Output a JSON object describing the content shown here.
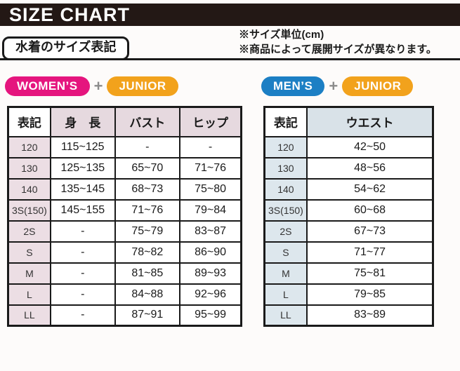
{
  "title_bar": {
    "title": "SIZE CHART"
  },
  "section": {
    "label": "水着のサイズ表記",
    "notes": [
      "※サイズ単位(cm)",
      "※商品によって展開サイズが異なります。"
    ]
  },
  "colors": {
    "title_bar_bg": "#231815",
    "womens_badge": "#e5157e",
    "mens_badge": "#1c7fc4",
    "junior_badge": "#f2a21c",
    "plus_sign": "#8c8c8c",
    "table_border": "#1a1a1a",
    "womens_header_bg": "#e6d9df",
    "womens_firstcol_bg": "#ecdee4",
    "mens_header_bg": "#d9e2e8",
    "mens_firstcol_bg": "#dde7ed"
  },
  "left_group": {
    "badges": [
      {
        "label": "WOMEN’S"
      },
      {
        "label": "JUNIOR"
      }
    ],
    "plus": "+",
    "table": {
      "headers": [
        "表記",
        "身　長",
        "バスト",
        "ヒップ"
      ],
      "rows": [
        [
          "120",
          "115~125",
          "-",
          "-"
        ],
        [
          "130",
          "125~135",
          "65~70",
          "71~76"
        ],
        [
          "140",
          "135~145",
          "68~73",
          "75~80"
        ],
        [
          "3S(150)",
          "145~155",
          "71~76",
          "79~84"
        ],
        [
          "2S",
          "-",
          "75~79",
          "83~87"
        ],
        [
          "S",
          "-",
          "78~82",
          "86~90"
        ],
        [
          "M",
          "-",
          "81~85",
          "89~93"
        ],
        [
          "L",
          "-",
          "84~88",
          "92~96"
        ],
        [
          "LL",
          "-",
          "87~91",
          "95~99"
        ]
      ]
    }
  },
  "right_group": {
    "badges": [
      {
        "label": "MEN’S"
      },
      {
        "label": "JUNIOR"
      }
    ],
    "plus": "+",
    "table": {
      "headers": [
        "表記",
        "ウエスト"
      ],
      "rows": [
        [
          "120",
          "42~50"
        ],
        [
          "130",
          "48~56"
        ],
        [
          "140",
          "54~62"
        ],
        [
          "3S(150)",
          "60~68"
        ],
        [
          "2S",
          "67~73"
        ],
        [
          "S",
          "71~77"
        ],
        [
          "M",
          "75~81"
        ],
        [
          "L",
          "79~85"
        ],
        [
          "LL",
          "83~89"
        ]
      ]
    }
  }
}
